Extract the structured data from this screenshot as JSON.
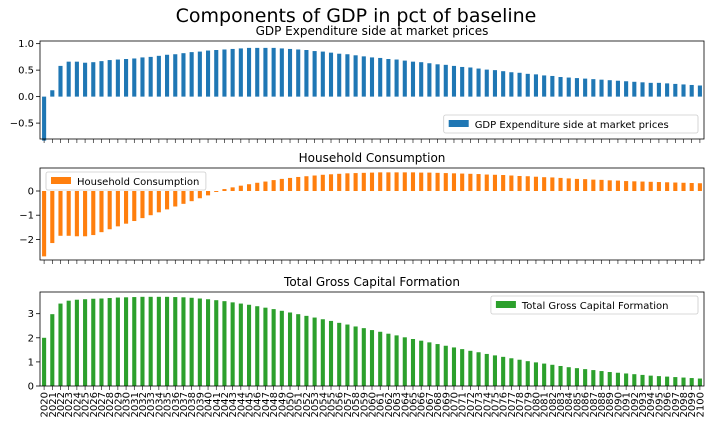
{
  "figure": {
    "suptitle": "Components of GDP in pct of baseline"
  },
  "chart_data": [
    {
      "type": "bar",
      "title": "GDP Expenditure side at market prices",
      "xlabel": "",
      "ylabel": "",
      "ylim": [
        -0.8,
        1.05
      ],
      "yticks": [
        1.0,
        0.5,
        0.0,
        -0.5
      ],
      "ytick_labels": [
        "1.0",
        "0.5",
        "0.0",
        "−0.5"
      ],
      "legend_position": "lower-right",
      "color": "#1f77b4",
      "series": [
        {
          "name": "GDP Expenditure side at market prices",
          "values": [
            -0.83,
            0.12,
            0.58,
            0.66,
            0.66,
            0.64,
            0.65,
            0.67,
            0.69,
            0.7,
            0.71,
            0.72,
            0.74,
            0.75,
            0.77,
            0.79,
            0.8,
            0.82,
            0.84,
            0.85,
            0.87,
            0.88,
            0.89,
            0.9,
            0.91,
            0.92,
            0.92,
            0.92,
            0.92,
            0.91,
            0.9,
            0.89,
            0.88,
            0.86,
            0.85,
            0.83,
            0.81,
            0.8,
            0.78,
            0.76,
            0.74,
            0.73,
            0.71,
            0.7,
            0.68,
            0.66,
            0.65,
            0.63,
            0.61,
            0.6,
            0.58,
            0.56,
            0.55,
            0.53,
            0.51,
            0.5,
            0.48,
            0.46,
            0.45,
            0.43,
            0.42,
            0.4,
            0.39,
            0.37,
            0.36,
            0.35,
            0.34,
            0.33,
            0.32,
            0.31,
            0.3,
            0.29,
            0.28,
            0.27,
            0.26,
            0.26,
            0.25,
            0.24,
            0.23,
            0.22,
            0.21
          ]
        }
      ]
    },
    {
      "type": "bar",
      "title": "Household Consumption",
      "xlabel": "",
      "ylabel": "",
      "ylim": [
        -2.85,
        0.95
      ],
      "yticks": [
        0,
        -1,
        -2
      ],
      "ytick_labels": [
        "0",
        "−1",
        "−2"
      ],
      "legend_position": "upper-left",
      "color": "#ff7f0e",
      "series": [
        {
          "name": "Household Consumption",
          "values": [
            -2.7,
            -2.15,
            -1.85,
            -1.85,
            -1.87,
            -1.87,
            -1.82,
            -1.7,
            -1.58,
            -1.46,
            -1.35,
            -1.24,
            -1.12,
            -1.0,
            -0.88,
            -0.76,
            -0.64,
            -0.53,
            -0.42,
            -0.3,
            -0.18,
            -0.04,
            0.08,
            0.15,
            0.22,
            0.28,
            0.34,
            0.39,
            0.45,
            0.5,
            0.54,
            0.58,
            0.61,
            0.64,
            0.67,
            0.69,
            0.71,
            0.73,
            0.74,
            0.75,
            0.76,
            0.77,
            0.77,
            0.77,
            0.77,
            0.77,
            0.76,
            0.76,
            0.75,
            0.74,
            0.73,
            0.72,
            0.71,
            0.7,
            0.68,
            0.67,
            0.66,
            0.64,
            0.62,
            0.61,
            0.59,
            0.57,
            0.56,
            0.54,
            0.52,
            0.5,
            0.49,
            0.47,
            0.46,
            0.44,
            0.43,
            0.41,
            0.4,
            0.39,
            0.38,
            0.37,
            0.36,
            0.35,
            0.34,
            0.33,
            0.32
          ]
        }
      ]
    },
    {
      "type": "bar",
      "title": "Total Gross Capital Formation",
      "xlabel": "",
      "ylabel": "",
      "ylim": [
        0,
        3.9
      ],
      "yticks": [
        3,
        2,
        1,
        0
      ],
      "ytick_labels": [
        "3",
        "2",
        "1",
        "0"
      ],
      "legend_position": "upper-right",
      "color": "#2ca02c",
      "categories": [
        "2020",
        "2021",
        "2022",
        "2023",
        "2024",
        "2025",
        "2026",
        "2027",
        "2028",
        "2029",
        "2030",
        "2031",
        "2032",
        "2033",
        "2034",
        "2035",
        "2036",
        "2037",
        "2038",
        "2039",
        "2040",
        "2041",
        "2042",
        "2043",
        "2044",
        "2045",
        "2046",
        "2047",
        "2048",
        "2049",
        "2050",
        "2051",
        "2052",
        "2053",
        "2054",
        "2055",
        "2056",
        "2057",
        "2058",
        "2059",
        "2060",
        "2061",
        "2062",
        "2063",
        "2064",
        "2065",
        "2066",
        "2067",
        "2068",
        "2069",
        "2070",
        "2071",
        "2072",
        "2073",
        "2074",
        "2075",
        "2076",
        "2077",
        "2078",
        "2079",
        "2080",
        "2081",
        "2082",
        "2083",
        "2084",
        "2085",
        "2086",
        "2087",
        "2088",
        "2089",
        "2090",
        "2091",
        "2092",
        "2093",
        "2094",
        "2095",
        "2096",
        "2097",
        "2098",
        "2099",
        "2100"
      ],
      "series": [
        {
          "name": "Total Gross Capital Formation",
          "values": [
            2.0,
            2.98,
            3.42,
            3.54,
            3.58,
            3.6,
            3.62,
            3.63,
            3.65,
            3.67,
            3.68,
            3.69,
            3.7,
            3.7,
            3.7,
            3.7,
            3.69,
            3.68,
            3.66,
            3.63,
            3.6,
            3.56,
            3.52,
            3.47,
            3.42,
            3.37,
            3.31,
            3.25,
            3.19,
            3.12,
            3.05,
            2.98,
            2.91,
            2.84,
            2.77,
            2.7,
            2.62,
            2.55,
            2.47,
            2.4,
            2.32,
            2.25,
            2.17,
            2.1,
            2.02,
            1.95,
            1.88,
            1.81,
            1.74,
            1.67,
            1.6,
            1.53,
            1.46,
            1.4,
            1.33,
            1.27,
            1.21,
            1.15,
            1.09,
            1.03,
            0.98,
            0.93,
            0.88,
            0.83,
            0.78,
            0.74,
            0.7,
            0.66,
            0.62,
            0.58,
            0.55,
            0.52,
            0.49,
            0.46,
            0.43,
            0.41,
            0.39,
            0.37,
            0.35,
            0.33,
            0.31
          ]
        }
      ]
    }
  ]
}
